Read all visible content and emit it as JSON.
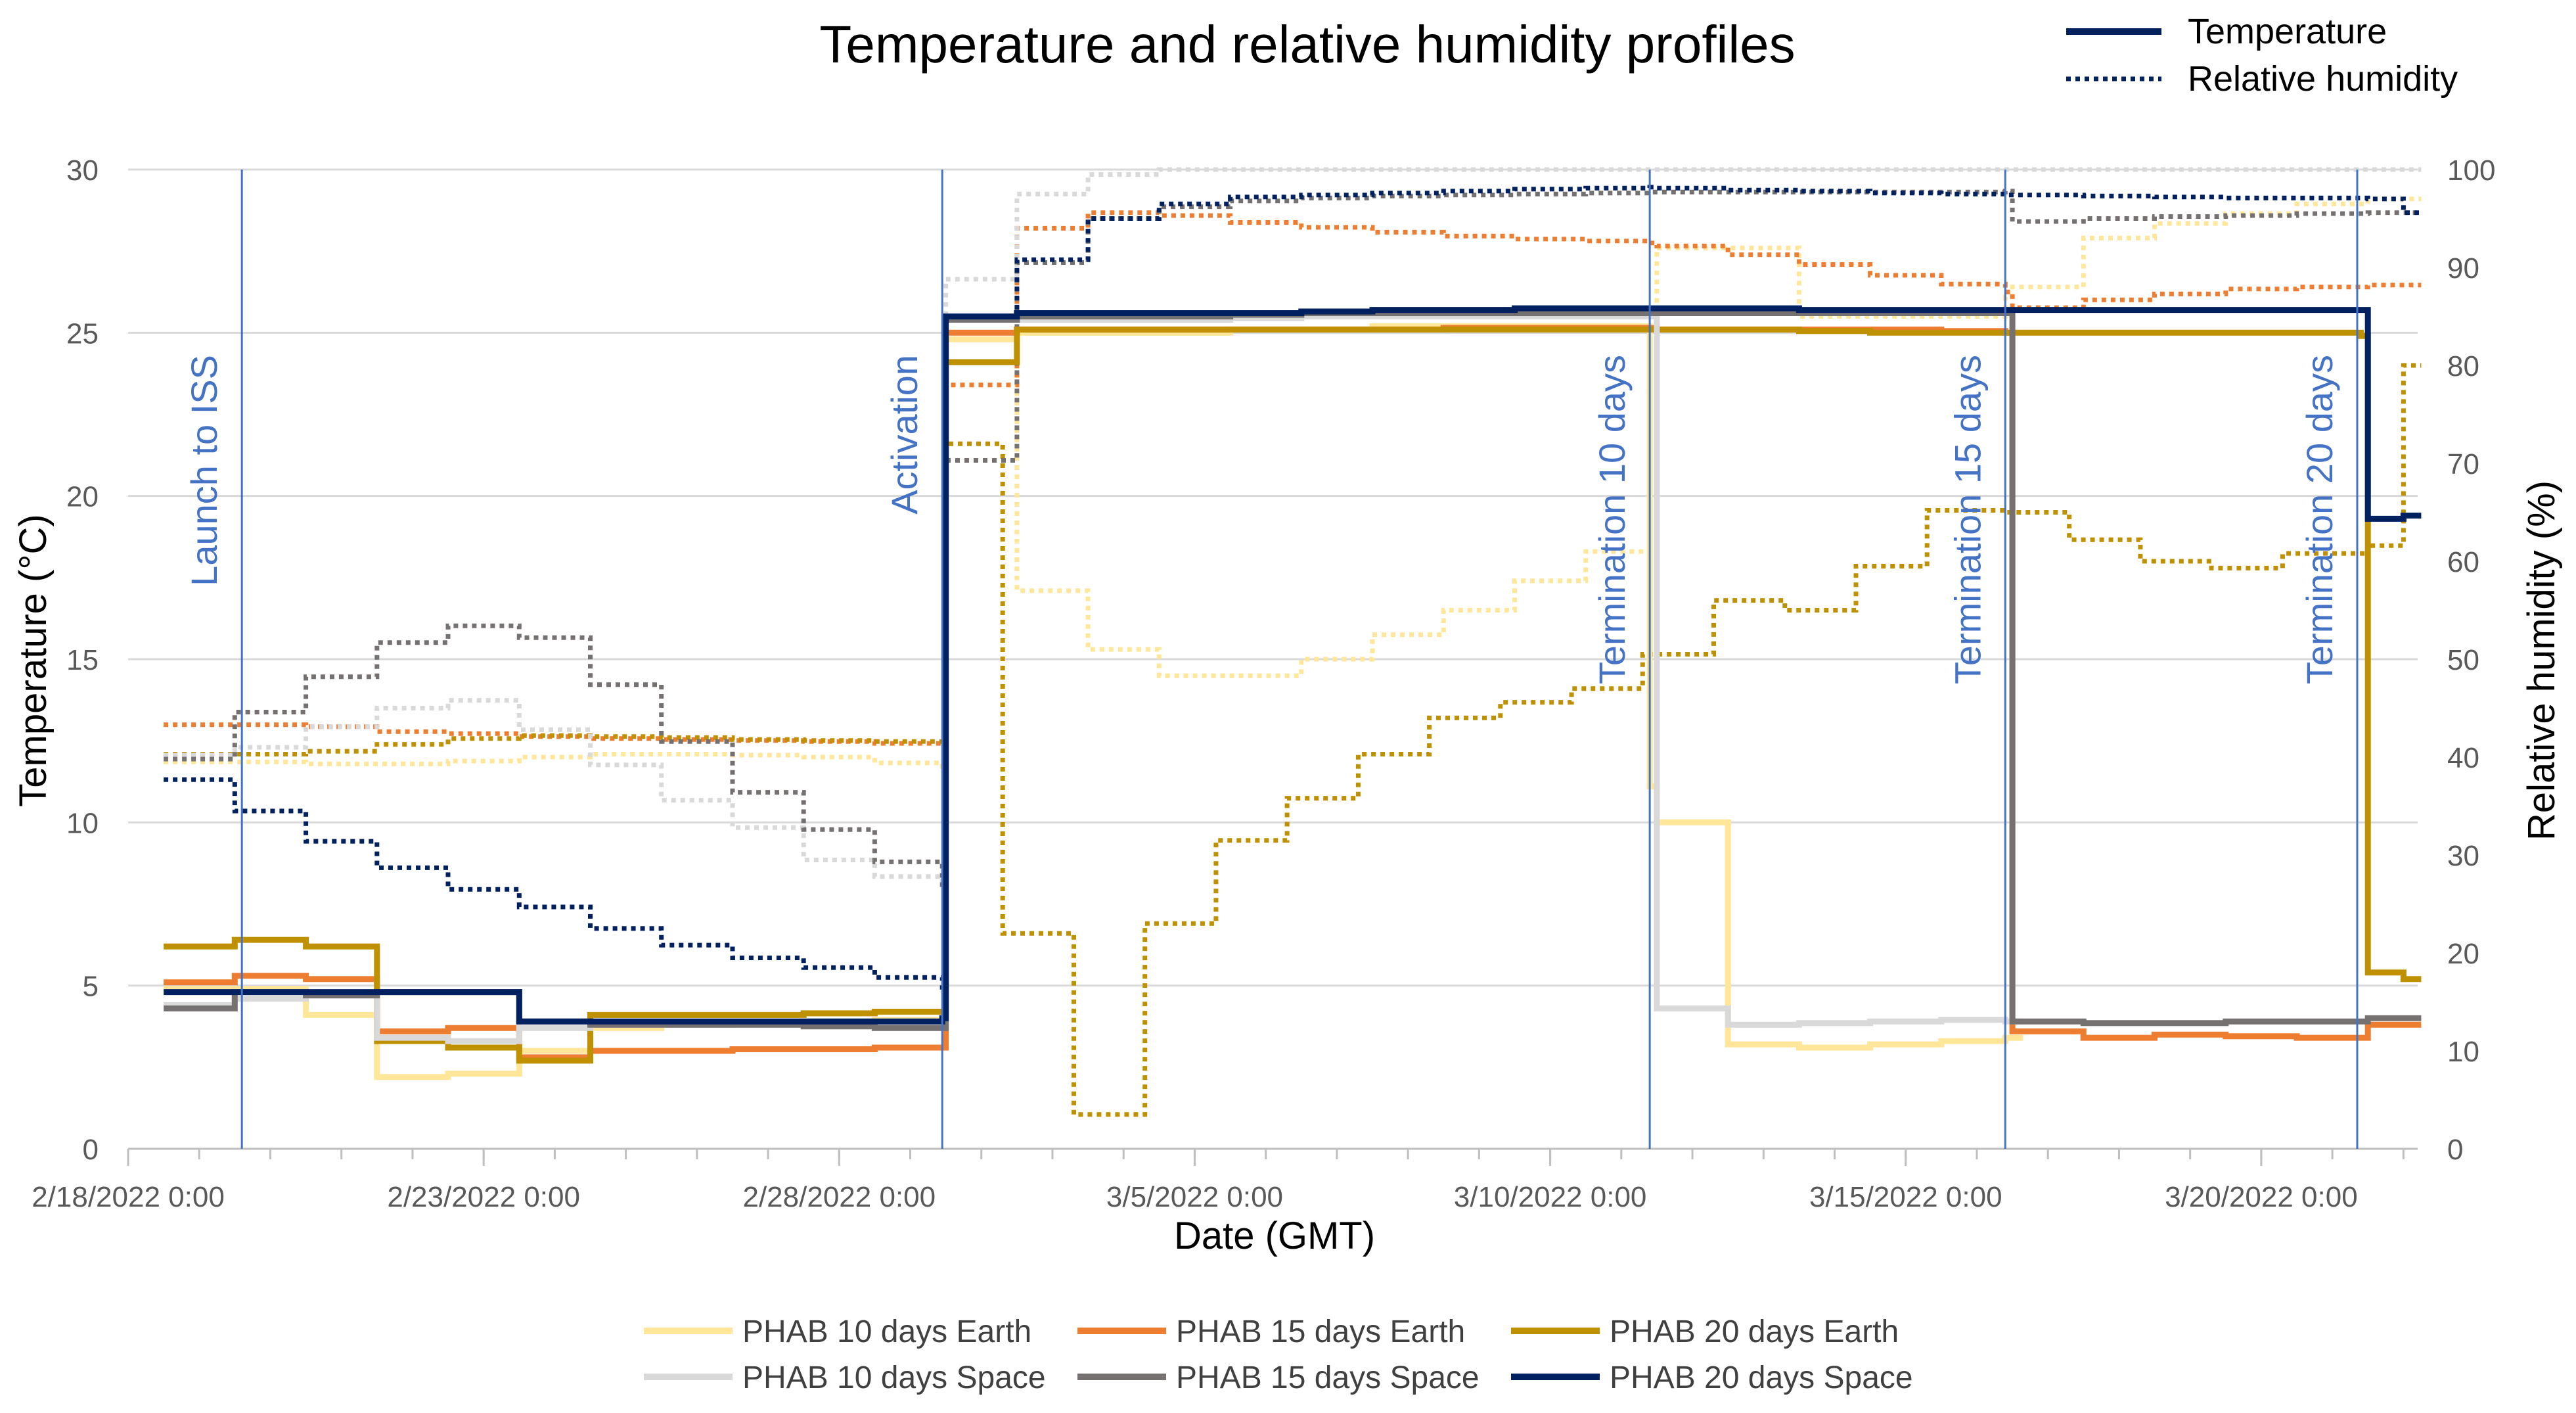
{
  "chart_data": {
    "type": "line",
    "title": "Temperature and relative humidity profiles",
    "xlabel": "Date (GMT)",
    "ylabel": "Temperature (°C)",
    "y2label": "Relative humidity (%)",
    "xlim": [
      0,
      32.2
    ],
    "ylim": [
      0,
      30
    ],
    "y2lim": [
      0,
      100
    ],
    "x_ticks": [
      {
        "x": 0,
        "label": "2/18/2022 0:00"
      },
      {
        "x": 5,
        "label": "2/23/2022 0:00"
      },
      {
        "x": 10,
        "label": "2/28/2022 0:00"
      },
      {
        "x": 15,
        "label": "3/5/2022 0:00"
      },
      {
        "x": 20,
        "label": "3/10/2022 0:00"
      },
      {
        "x": 25,
        "label": "3/15/2022 0:00"
      },
      {
        "x": 30,
        "label": "3/20/2022 0:00"
      }
    ],
    "y_ticks": [
      0,
      5,
      10,
      15,
      20,
      25,
      30
    ],
    "y2_ticks": [
      0,
      10,
      20,
      30,
      40,
      50,
      60,
      70,
      80,
      90,
      100
    ],
    "grid": true,
    "events": [
      {
        "x": 1.6,
        "label": "Launch to ISS"
      },
      {
        "x": 11.45,
        "label": "Activation"
      },
      {
        "x": 21.4,
        "label": "Termination 10 days"
      },
      {
        "x": 26.4,
        "label": "Termination 15 days"
      },
      {
        "x": 31.35,
        "label": "Termination 20 days"
      }
    ],
    "style_legend": [
      {
        "label": "Temperature",
        "style": "solid"
      },
      {
        "label": "Relative humidity",
        "style": "dotted"
      }
    ],
    "series_legend": [
      {
        "label": "PHAB 10 days Earth",
        "color": "#FFE699"
      },
      {
        "label": "PHAB 15 days Earth",
        "color": "#ED7D31"
      },
      {
        "label": "PHAB 20 days Earth",
        "color": "#BF9000"
      },
      {
        "label": "PHAB 10 days Space",
        "color": "#D9D9D9"
      },
      {
        "label": "PHAB 15 days Space",
        "color": "#767171"
      },
      {
        "label": "PHAB 20 days Space",
        "color": "#002060"
      }
    ],
    "series": [
      {
        "name": "PHAB 10 days Earth",
        "measure": "Relative humidity",
        "color": "#FFE699",
        "x": [
          0.5,
          1.5,
          2.5,
          3.5,
          4.5,
          5.5,
          6.5,
          7.5,
          8.5,
          9.5,
          10.5,
          11.45,
          11.5,
          12.5,
          13.5,
          14.5,
          15.5,
          16.5,
          17.5,
          18.5,
          19.5,
          20.5,
          21.4,
          21.5,
          22.5,
          23.5,
          24.5,
          25.5,
          26.4,
          26.5,
          27.5,
          28.5,
          29.5,
          30.5,
          31.5,
          32.0
        ],
        "y": [
          39.5,
          39.5,
          39.3,
          39.3,
          39.6,
          40,
          40.3,
          40.3,
          40.2,
          40,
          39.4,
          38.8,
          85,
          57,
          51,
          48.3,
          48.3,
          50,
          52.5,
          55,
          58,
          61,
          63,
          92,
          92,
          85,
          85,
          85,
          87,
          88,
          93,
          94.5,
          95.5,
          96.5,
          97,
          97
        ]
      },
      {
        "name": "PHAB 15 days Earth",
        "measure": "Relative humidity",
        "color": "#ED7D31",
        "x": [
          0.5,
          1.5,
          2.5,
          3.5,
          4.5,
          5.5,
          6.5,
          7.5,
          8.5,
          9.5,
          10.5,
          11.45,
          11.5,
          12.5,
          13.5,
          14.5,
          15.5,
          16.5,
          17.5,
          18.5,
          19.5,
          20.5,
          21.4,
          21.5,
          22.5,
          23.5,
          24.5,
          25.5,
          26.4,
          26.5,
          27.5,
          28.5,
          29.5,
          30.5,
          31.5,
          32.0
        ],
        "y": [
          43.3,
          43.3,
          43.1,
          42.6,
          42.4,
          42.1,
          41.9,
          41.8,
          41.7,
          41.6,
          41.4,
          41.2,
          78,
          94,
          95.6,
          95.3,
          94.6,
          94.1,
          93.6,
          93.2,
          92.9,
          92.7,
          92.5,
          92.2,
          91.3,
          90.3,
          89.2,
          88.3,
          87.5,
          85.9,
          86.7,
          87.3,
          87.8,
          88.0,
          88.2,
          88.2
        ]
      },
      {
        "name": "PHAB 20 days Earth",
        "measure": "Relative humidity",
        "color": "#BF9000",
        "x": [
          0.5,
          1.5,
          2.5,
          3.5,
          4.5,
          5.5,
          6.5,
          7.5,
          8.5,
          9.5,
          10.5,
          11.45,
          11.5,
          12.3,
          13.3,
          14.3,
          15.3,
          16.3,
          17.3,
          18.3,
          19.3,
          20.3,
          21.3,
          22.3,
          23.3,
          24.3,
          25.3,
          26.4,
          27.3,
          28.3,
          29.3,
          30.3,
          31.5,
          32.0
        ],
        "y": [
          40.3,
          40.3,
          40.6,
          41.3,
          41.9,
          42.2,
          42.1,
          42,
          41.8,
          41.7,
          41.6,
          41.3,
          72,
          22,
          3.5,
          23,
          31.5,
          35.8,
          40.3,
          44,
          45.6,
          47,
          50.5,
          56,
          55,
          59.5,
          65.2,
          65,
          62.2,
          60,
          59.3,
          60.8,
          61.6,
          80
        ]
      },
      {
        "name": "PHAB 10 days Space",
        "measure": "Relative humidity",
        "color": "#D9D9D9",
        "x": [
          0.5,
          1.5,
          2.5,
          3.5,
          4.5,
          5.5,
          6.5,
          7.5,
          8.5,
          9.5,
          10.5,
          11.45,
          11.5,
          12.5,
          13.5,
          14.5,
          15.5,
          16.5,
          17.5,
          18.5,
          19.5,
          20.5,
          21.4,
          21.5,
          22.5,
          23.5,
          24.5,
          25.5,
          26.4,
          26.5,
          27.5,
          28.5,
          29.5,
          30.5,
          31.5,
          32.0
        ],
        "y": [
          40.2,
          41,
          43.1,
          45,
          45.8,
          42.8,
          39.2,
          35.6,
          32.8,
          29.5,
          27.8,
          26.9,
          88.8,
          97.5,
          99.5,
          100,
          100,
          100,
          100,
          100,
          100,
          100,
          100,
          100,
          100,
          100,
          100,
          100,
          100,
          100,
          100,
          100,
          100,
          100,
          100,
          100
        ]
      },
      {
        "name": "PHAB 15 days Space",
        "measure": "Relative humidity",
        "color": "#767171",
        "x": [
          0.5,
          1.5,
          2.5,
          3.5,
          4.5,
          5.5,
          6.5,
          7.5,
          8.5,
          9.5,
          10.5,
          11.45,
          11.5,
          12.5,
          13.5,
          14.5,
          15.5,
          16.5,
          17.5,
          18.5,
          19.5,
          20.5,
          21.4,
          21.5,
          22.5,
          23.5,
          24.5,
          25.5,
          26.4,
          26.5,
          27.5,
          28.5,
          29.5,
          30.5,
          31.5,
          32.0
        ],
        "y": [
          39.8,
          44.6,
          48.2,
          51.7,
          53.4,
          52.2,
          47.4,
          41.6,
          36.4,
          32.6,
          29.3,
          26.4,
          70.3,
          90.5,
          95,
          96.2,
          96.8,
          97.1,
          97.3,
          97.4,
          97.5,
          97.6,
          97.7,
          97.7,
          97.7,
          97.7,
          97.7,
          97.7,
          97.8,
          94.7,
          95,
          95.2,
          95.3,
          95.5,
          95.6,
          95.6
        ]
      },
      {
        "name": "PHAB 20 days Space",
        "measure": "Relative humidity",
        "color": "#002060",
        "x": [
          0.5,
          1.5,
          2.5,
          3.5,
          4.5,
          5.5,
          6.5,
          7.5,
          8.5,
          9.5,
          10.5,
          11.45,
          11.5,
          12.5,
          13.5,
          14.5,
          15.5,
          16.5,
          17.5,
          18.5,
          19.5,
          20.5,
          21.4,
          21.5,
          22.5,
          23.5,
          24.5,
          25.5,
          26.4,
          26.5,
          27.5,
          28.5,
          29.5,
          30.5,
          31.5,
          32.0
        ],
        "y": [
          37.7,
          34.5,
          31.4,
          28.7,
          26.5,
          24.7,
          22.5,
          20.8,
          19.5,
          18.5,
          17.5,
          16.5,
          85,
          90.8,
          95,
          96.5,
          97.2,
          97.4,
          97.6,
          97.8,
          98,
          98.1,
          98.2,
          98.1,
          97.9,
          97.8,
          97.6,
          97.5,
          97.4,
          97.4,
          97.3,
          97.2,
          97.1,
          97.1,
          97.0,
          95.6
        ]
      },
      {
        "name": "PHAB 10 days Earth",
        "measure": "Temperature",
        "color": "#FFE699",
        "x": [
          0.5,
          2.5,
          3.5,
          4.5,
          5.5,
          6.5,
          7.5,
          8.5,
          9.5,
          10.5,
          11.45,
          11.5,
          12.5,
          13.5,
          14.5,
          15.5,
          16.5,
          17.5,
          18.5,
          19.5,
          20.5,
          21.4,
          21.5,
          22.5,
          23.5,
          24.5,
          25.5,
          26.4
        ],
        "y": [
          4.9,
          4.1,
          2.2,
          2.3,
          3.0,
          3.7,
          3.8,
          3.85,
          3.9,
          3.95,
          4.0,
          24.8,
          25,
          25,
          25,
          25.1,
          25.1,
          25.2,
          25.2,
          25.2,
          25.2,
          11.1,
          10.0,
          3.2,
          3.1,
          3.2,
          3.3,
          3.4
        ]
      },
      {
        "name": "PHAB 15 days Earth",
        "measure": "Temperature",
        "color": "#ED7D31",
        "x": [
          0.5,
          1.5,
          2.5,
          3.5,
          4.5,
          5.5,
          6.5,
          7.5,
          8.5,
          9.5,
          10.5,
          11.45,
          11.5,
          12.5,
          13.5,
          14.5,
          15.5,
          16.5,
          17.5,
          18.5,
          19.5,
          20.5,
          21.4,
          21.5,
          22.5,
          23.5,
          24.5,
          25.5,
          26.4,
          26.5,
          27.5,
          28.5,
          29.5,
          30.5,
          31.5,
          32.0
        ],
        "y": [
          5.1,
          5.3,
          5.2,
          3.6,
          3.7,
          2.8,
          3.0,
          3.0,
          3.05,
          3.05,
          3.1,
          3.1,
          25.0,
          25.1,
          25.1,
          25.1,
          25.1,
          25.1,
          25.1,
          25.15,
          25.15,
          25.15,
          25.15,
          25.1,
          25.1,
          25.1,
          25.1,
          25.05,
          25.0,
          3.6,
          3.4,
          3.5,
          3.45,
          3.4,
          3.8,
          3.8
        ]
      },
      {
        "name": "PHAB 20 days Earth",
        "measure": "Temperature",
        "color": "#BF9000",
        "x": [
          0.5,
          1.5,
          2.5,
          3.5,
          4.5,
          5.5,
          6.5,
          7.5,
          8.5,
          9.5,
          10.5,
          11.45,
          11.5,
          12.5,
          13.5,
          14.5,
          15.5,
          16.5,
          17.5,
          18.5,
          19.5,
          20.5,
          21.4,
          21.5,
          22.5,
          23.5,
          24.5,
          25.5,
          26.4,
          26.5,
          27.5,
          28.5,
          29.5,
          30.5,
          31.4,
          31.5,
          32.0
        ],
        "y": [
          6.2,
          6.4,
          6.2,
          3.3,
          3.1,
          2.7,
          4.1,
          4.1,
          4.1,
          4.15,
          4.2,
          4.2,
          24.1,
          25.1,
          25.1,
          25.1,
          25.1,
          25.1,
          25.1,
          25.1,
          25.1,
          25.1,
          25.1,
          25.1,
          25.1,
          25.05,
          25.0,
          25.0,
          25.0,
          25.0,
          25.0,
          25.0,
          25.0,
          25.0,
          24.9,
          5.4,
          5.2
        ]
      },
      {
        "name": "PHAB 10 days Space",
        "measure": "Temperature",
        "color": "#D9D9D9",
        "x": [
          0.5,
          1.5,
          2.5,
          3.5,
          4.5,
          5.5,
          6.5,
          7.5,
          8.5,
          9.5,
          10.5,
          11.45,
          11.5,
          12.5,
          13.5,
          14.5,
          15.5,
          16.5,
          17.5,
          18.5,
          19.5,
          20.5,
          21.4,
          21.5,
          22.5,
          23.5,
          24.5,
          25.5,
          26.4
        ],
        "y": [
          4.4,
          4.6,
          4.7,
          3.4,
          3.3,
          3.7,
          3.8,
          3.8,
          3.8,
          3.8,
          3.8,
          3.8,
          25.4,
          25.4,
          25.4,
          25.4,
          25.45,
          25.5,
          25.5,
          25.5,
          25.5,
          25.5,
          25.5,
          4.3,
          3.8,
          3.85,
          3.9,
          3.95,
          3.9
        ]
      },
      {
        "name": "PHAB 15 days Space",
        "measure": "Temperature",
        "color": "#767171",
        "x": [
          0.5,
          1.5,
          2.5,
          3.5,
          4.5,
          5.5,
          6.5,
          7.5,
          8.5,
          9.5,
          10.5,
          11.45,
          11.5,
          12.5,
          13.5,
          14.5,
          15.5,
          16.5,
          17.5,
          18.5,
          19.5,
          20.5,
          21.4,
          21.5,
          22.5,
          23.5,
          24.5,
          25.5,
          26.4,
          26.5,
          27.5,
          28.5,
          29.5,
          30.5,
          31.5,
          32.0
        ],
        "y": [
          4.3,
          4.8,
          4.7,
          4.8,
          4.8,
          3.9,
          3.8,
          3.8,
          3.8,
          3.75,
          3.7,
          3.7,
          25.4,
          25.5,
          25.5,
          25.5,
          25.55,
          25.6,
          25.6,
          25.6,
          25.6,
          25.6,
          25.6,
          25.6,
          25.6,
          25.6,
          25.6,
          25.6,
          25.6,
          3.9,
          3.85,
          3.85,
          3.9,
          3.9,
          4.0,
          4.0
        ]
      },
      {
        "name": "PHAB 20 days Space",
        "measure": "Temperature",
        "color": "#002060",
        "x": [
          0.5,
          1.5,
          2.5,
          3.5,
          4.5,
          5.5,
          6.5,
          7.5,
          8.5,
          9.5,
          10.5,
          11.45,
          11.5,
          12.5,
          13.5,
          14.5,
          15.5,
          16.5,
          17.5,
          18.5,
          19.5,
          20.5,
          21.4,
          21.5,
          22.5,
          23.5,
          24.5,
          25.5,
          26.4,
          26.5,
          27.5,
          28.5,
          29.5,
          30.5,
          31.4,
          31.5,
          32.0
        ],
        "y": [
          4.8,
          4.8,
          4.8,
          4.8,
          4.8,
          3.9,
          3.9,
          3.9,
          3.9,
          3.9,
          3.9,
          4.0,
          25.5,
          25.6,
          25.6,
          25.6,
          25.6,
          25.65,
          25.7,
          25.7,
          25.75,
          25.75,
          25.75,
          25.75,
          25.75,
          25.7,
          25.7,
          25.7,
          25.7,
          25.7,
          25.7,
          25.7,
          25.7,
          25.7,
          25.7,
          19.3,
          19.4
        ]
      }
    ]
  }
}
